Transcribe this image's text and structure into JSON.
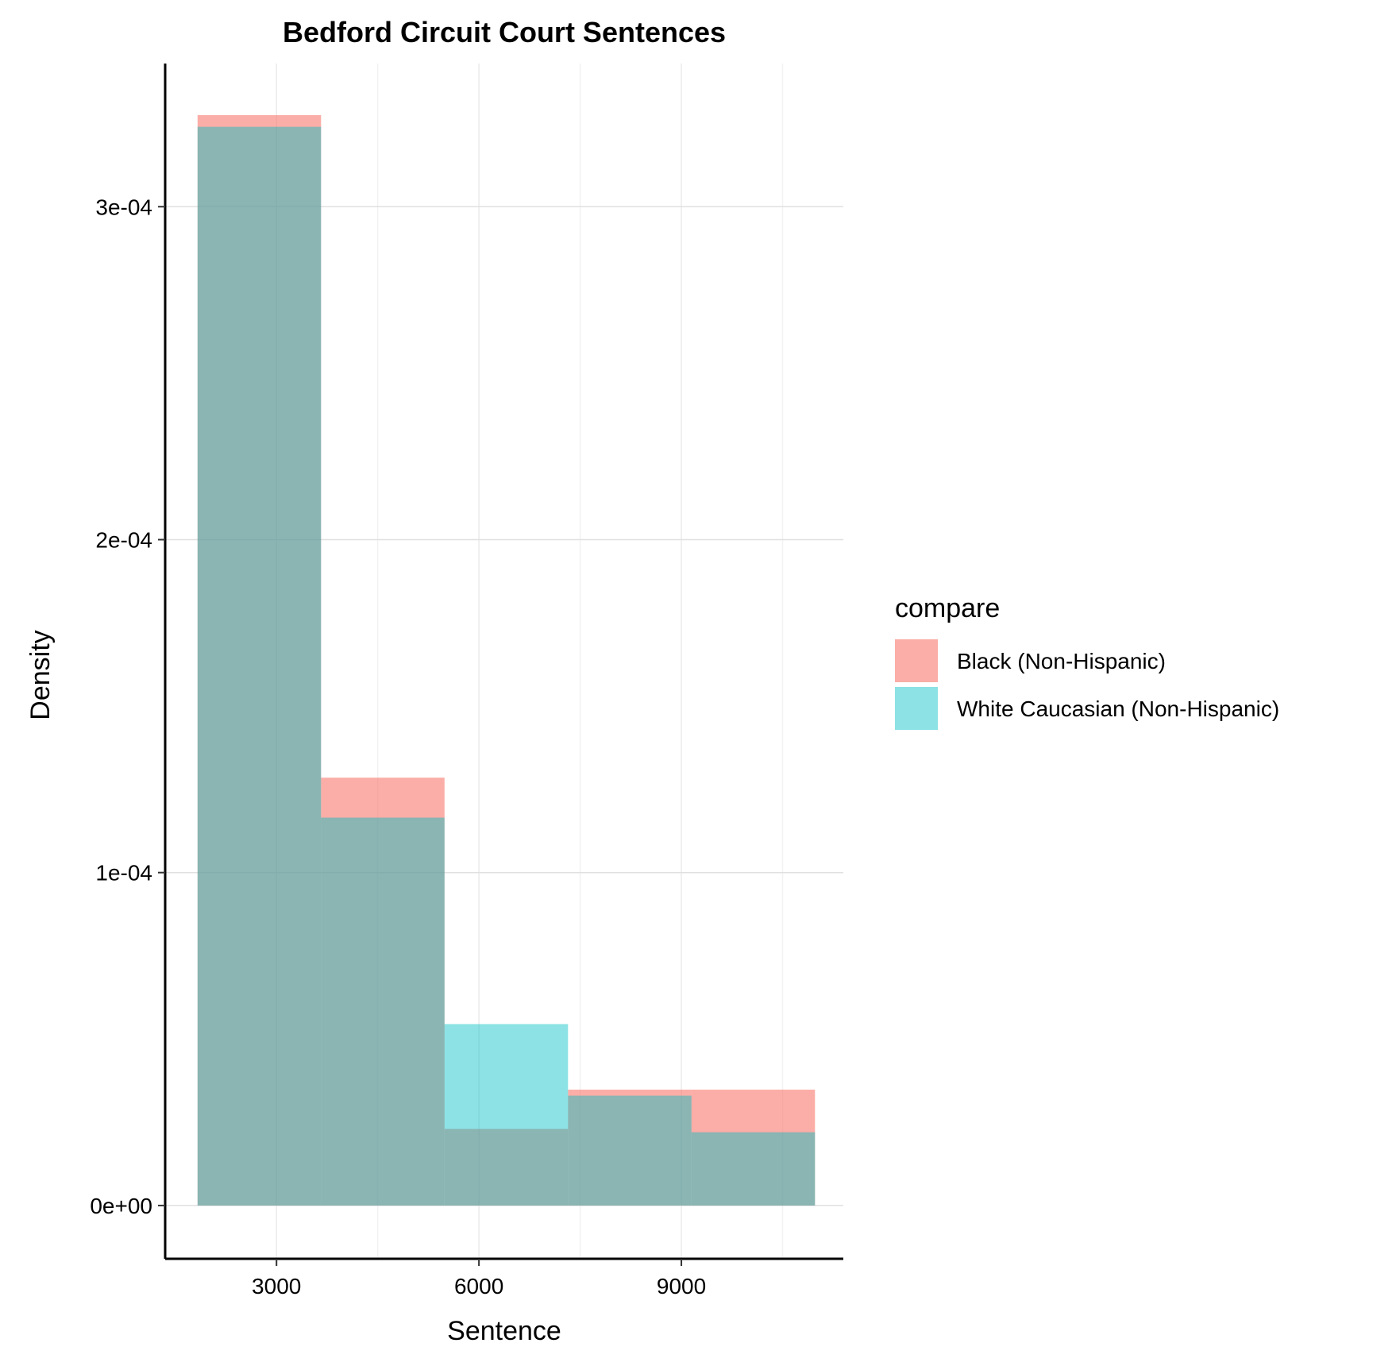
{
  "chart_data": {
    "type": "bar",
    "subtype": "overlapping histogram (density)",
    "title": "Bedford Circuit Court Sentences",
    "xlabel": "Sentence",
    "ylabel": "Density",
    "x_ticks": [
      "3000",
      "6000",
      "9000"
    ],
    "x_tick_values": [
      3000,
      6000,
      9000
    ],
    "y_ticks": [
      "0e+00",
      "1e-04",
      "2e-04",
      "3e-04"
    ],
    "y_tick_values": [
      0,
      0.0001,
      0.0002,
      0.0003
    ],
    "xlim": [
      1350,
      11400
    ],
    "ylim": [
      -1.6e-05,
      0.000343
    ],
    "bin_edges": [
      1830,
      3660,
      5490,
      7320,
      9150,
      10980
    ],
    "grid": true,
    "legend": {
      "title": "compare",
      "position": "right"
    },
    "series": [
      {
        "name": "Black (Non-Hispanic)",
        "color": "#F8766D",
        "opacity": 0.6,
        "values": [
          0.0003275,
          0.0001285,
          2.3e-05,
          3.48e-05,
          3.48e-05
        ]
      },
      {
        "name": "White Caucasian (Non-Hispanic)",
        "color": "#00BFC4",
        "opacity": 0.45,
        "values": [
          0.000324,
          0.0001165,
          5.45e-05,
          3.3e-05,
          2.2e-05
        ]
      }
    ]
  }
}
